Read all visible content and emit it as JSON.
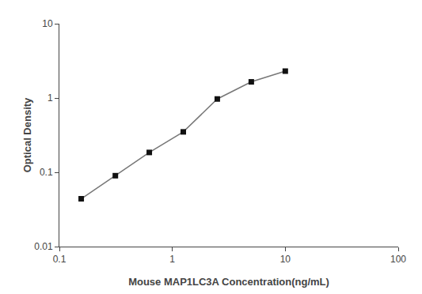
{
  "chart_data": {
    "type": "line",
    "x": [
      0.156,
      0.313,
      0.625,
      1.25,
      2.5,
      5.0,
      10.0
    ],
    "values": [
      0.044,
      0.09,
      0.185,
      0.35,
      0.97,
      1.65,
      2.3
    ],
    "xlabel": "Mouse MAP1LC3A Concentration(ng/mL)",
    "ylabel": "Optical Density",
    "xlim": [
      0.1,
      100
    ],
    "ylim": [
      0.01,
      10
    ],
    "xticks": [
      0.1,
      1,
      10,
      100
    ],
    "yticks": [
      0.01,
      0.1,
      1,
      10
    ],
    "log": true,
    "grid": false,
    "color": "#777777",
    "colors": [
      "#111111",
      "#111111",
      "#111111",
      "#111111",
      "#111111",
      "#111111",
      "#111111"
    ],
    "marker": "square"
  }
}
